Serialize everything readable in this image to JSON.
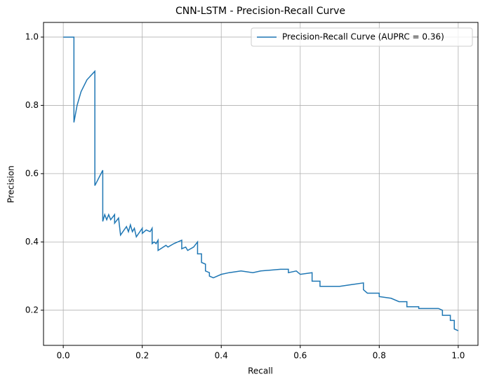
{
  "chart_data": {
    "type": "line",
    "title": "CNN-LSTM - Precision-Recall Curve",
    "xlabel": "Recall",
    "ylabel": "Precision",
    "x": [
      0,
      0.027,
      0.027,
      0.035,
      0.045,
      0.06,
      0.08,
      0.08,
      0.1,
      0.1,
      0.105,
      0.11,
      0.115,
      0.12,
      0.13,
      0.13,
      0.14,
      0.145,
      0.16,
      0.165,
      0.17,
      0.175,
      0.18,
      0.185,
      0.2,
      0.2,
      0.21,
      0.22,
      0.225,
      0.225,
      0.23,
      0.235,
      0.24,
      0.24,
      0.26,
      0.265,
      0.28,
      0.29,
      0.3,
      0.3,
      0.31,
      0.315,
      0.33,
      0.34,
      0.34,
      0.35,
      0.35,
      0.36,
      0.36,
      0.37,
      0.37,
      0.38,
      0.4,
      0.42,
      0.45,
      0.48,
      0.5,
      0.55,
      0.57,
      0.57,
      0.59,
      0.6,
      0.63,
      0.63,
      0.65,
      0.65,
      0.7,
      0.73,
      0.76,
      0.76,
      0.77,
      0.8,
      0.8,
      0.83,
      0.85,
      0.87,
      0.87,
      0.9,
      0.9,
      0.95,
      0.96,
      0.96,
      0.98,
      0.98,
      0.99,
      0.99,
      1.0
    ],
    "series": [
      {
        "name": "Precision-Recall Curve (AUPRC = 0.36)",
        "color": "#1f77b4",
        "values": [
          1,
          1,
          0.75,
          0.8,
          0.84,
          0.875,
          0.9,
          0.565,
          0.61,
          0.46,
          0.48,
          0.465,
          0.48,
          0.465,
          0.48,
          0.455,
          0.47,
          0.42,
          0.445,
          0.43,
          0.45,
          0.43,
          0.44,
          0.415,
          0.44,
          0.425,
          0.435,
          0.43,
          0.44,
          0.395,
          0.4,
          0.395,
          0.405,
          0.375,
          0.39,
          0.385,
          0.395,
          0.4,
          0.405,
          0.38,
          0.385,
          0.375,
          0.385,
          0.4,
          0.365,
          0.365,
          0.34,
          0.335,
          0.315,
          0.31,
          0.3,
          0.295,
          0.305,
          0.31,
          0.315,
          0.31,
          0.315,
          0.32,
          0.32,
          0.31,
          0.315,
          0.305,
          0.31,
          0.285,
          0.285,
          0.27,
          0.27,
          0.275,
          0.28,
          0.26,
          0.25,
          0.25,
          0.24,
          0.235,
          0.225,
          0.225,
          0.21,
          0.21,
          0.205,
          0.205,
          0.2,
          0.185,
          0.185,
          0.17,
          0.17,
          0.145,
          0.14
        ]
      }
    ],
    "xlim": [
      -0.05,
      1.05
    ],
    "ylim": [
      0.097,
      1.043
    ],
    "xticks": [
      {
        "value": 0,
        "label": "0.0"
      },
      0.2,
      0.4,
      0.6,
      0.8,
      {
        "value": 1,
        "label": "1.0"
      }
    ],
    "yticks": [
      0.2,
      0.4,
      0.6,
      0.8,
      {
        "value": 1,
        "label": "1.0"
      }
    ],
    "grid": true,
    "legend": "upper right"
  }
}
